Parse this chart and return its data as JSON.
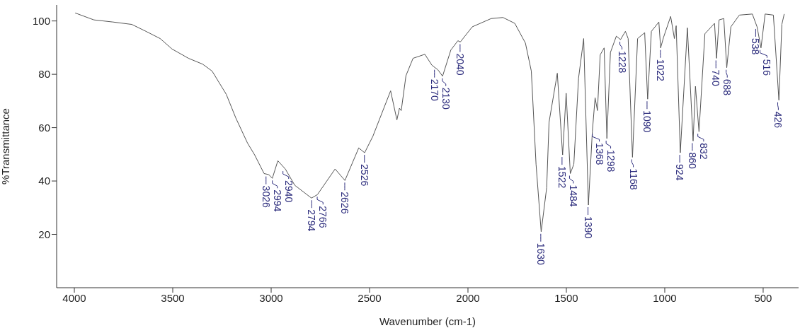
{
  "chart_data": {
    "type": "line",
    "xlabel": "Wavenumber (cm-1)",
    "ylabel": "%Transmittance",
    "xlim": [
      4090,
      320
    ],
    "xticks": [
      4000,
      3500,
      3000,
      2500,
      2000,
      1500,
      1000,
      500
    ],
    "ylim": [
      0,
      106
    ],
    "yticks": [
      20,
      40,
      60,
      80,
      100
    ],
    "series": [
      {
        "color": "#555555",
        "x": [
          3996,
          3901,
          3804,
          3708,
          3636,
          3564,
          3504,
          3420,
          3348,
          3300,
          3228,
          3180,
          3120,
          3084,
          3036,
          3012,
          2994,
          2966,
          2928,
          2880,
          2795,
          2765,
          2675,
          2625,
          2555,
          2525,
          2483,
          2393,
          2361,
          2348,
          2339,
          2315,
          2279,
          2219,
          2183,
          2153,
          2129,
          2087,
          2051,
          2039,
          1978,
          1882,
          1822,
          1762,
          1708,
          1678,
          1654,
          1628,
          1600,
          1588,
          1546,
          1519,
          1501,
          1480,
          1462,
          1438,
          1412,
          1388,
          1368,
          1354,
          1342,
          1328,
          1308,
          1294,
          1276,
          1246,
          1225,
          1200,
          1186,
          1164,
          1138,
          1102,
          1087,
          1068,
          1030,
          1021,
          1006,
          970,
          951,
          942,
          921,
          885,
          856,
          844,
          826,
          796,
          747,
          737,
          724,
          700,
          685,
          664,
          621,
          555,
          531,
          511,
          490,
          448,
          420,
          405,
          393
        ],
        "values": [
          103.0,
          100.4,
          99.6,
          98.7,
          96.1,
          93.4,
          89.5,
          86.0,
          83.8,
          81.2,
          72.5,
          63.7,
          54.2,
          49.8,
          42.8,
          42.4,
          41.0,
          47.6,
          44.5,
          38.4,
          33.6,
          34.9,
          44.5,
          40.2,
          52.4,
          50.6,
          56.8,
          73.8,
          62.9,
          67.3,
          66.4,
          79.5,
          86.0,
          87.5,
          83.4,
          81.7,
          79.3,
          89.1,
          92.6,
          92.1,
          97.8,
          100.9,
          101.3,
          99.1,
          91.7,
          81.2,
          46.3,
          21.0,
          37.5,
          62.0,
          80.4,
          49.8,
          72.9,
          42.8,
          46.3,
          78.6,
          93.4,
          31.0,
          58.5,
          71.2,
          66.4,
          87.3,
          89.9,
          55.9,
          88.2,
          94.3,
          93.0,
          96.1,
          93.4,
          48.9,
          93.4,
          95.6,
          70.7,
          96.1,
          99.6,
          89.9,
          93.9,
          101.7,
          93.4,
          98.2,
          50.6,
          97.4,
          55.0,
          75.5,
          58.5,
          95.2,
          99.1,
          86.0,
          100.4,
          100.9,
          82.5,
          97.8,
          102.2,
          102.6,
          97.8,
          89.9,
          102.6,
          102.2,
          70.3,
          98.7,
          102.6
        ]
      }
    ],
    "annotations": [
      {
        "text": "3026",
        "x": 3026,
        "y": 42.5
      },
      {
        "text": "2994",
        "x": 2994,
        "y": 41
      },
      {
        "text": "2940",
        "x": 2940,
        "y": 44.5
      },
      {
        "text": "2794",
        "x": 2794,
        "y": 33.6
      },
      {
        "text": "2766",
        "x": 2766,
        "y": 34.9
      },
      {
        "text": "2626",
        "x": 2626,
        "y": 40.2
      },
      {
        "text": "2526",
        "x": 2526,
        "y": 50.6
      },
      {
        "text": "2170",
        "x": 2170,
        "y": 82.5
      },
      {
        "text": "2130",
        "x": 2130,
        "y": 79.3
      },
      {
        "text": "2040",
        "x": 2040,
        "y": 92.1
      },
      {
        "text": "1630",
        "x": 1630,
        "y": 21
      },
      {
        "text": "1522",
        "x": 1522,
        "y": 49.8
      },
      {
        "text": "1484",
        "x": 1484,
        "y": 42.8
      },
      {
        "text": "1390",
        "x": 1390,
        "y": 31
      },
      {
        "text": "1368",
        "x": 1368,
        "y": 58.5
      },
      {
        "text": "1298",
        "x": 1298,
        "y": 55.9
      },
      {
        "text": "1228",
        "x": 1228,
        "y": 93
      },
      {
        "text": "1168",
        "x": 1168,
        "y": 48.9
      },
      {
        "text": "1090",
        "x": 1090,
        "y": 70.7
      },
      {
        "text": "1022",
        "x": 1022,
        "y": 89.9
      },
      {
        "text": "924",
        "x": 924,
        "y": 50.6
      },
      {
        "text": "860",
        "x": 860,
        "y": 55
      },
      {
        "text": "832",
        "x": 832,
        "y": 58.5
      },
      {
        "text": "740",
        "x": 740,
        "y": 86
      },
      {
        "text": "688",
        "x": 688,
        "y": 82.5
      },
      {
        "text": "538",
        "x": 538,
        "y": 97.8
      },
      {
        "text": "516",
        "x": 516,
        "y": 89.9
      },
      {
        "text": "426",
        "x": 426,
        "y": 70.3
      }
    ]
  }
}
